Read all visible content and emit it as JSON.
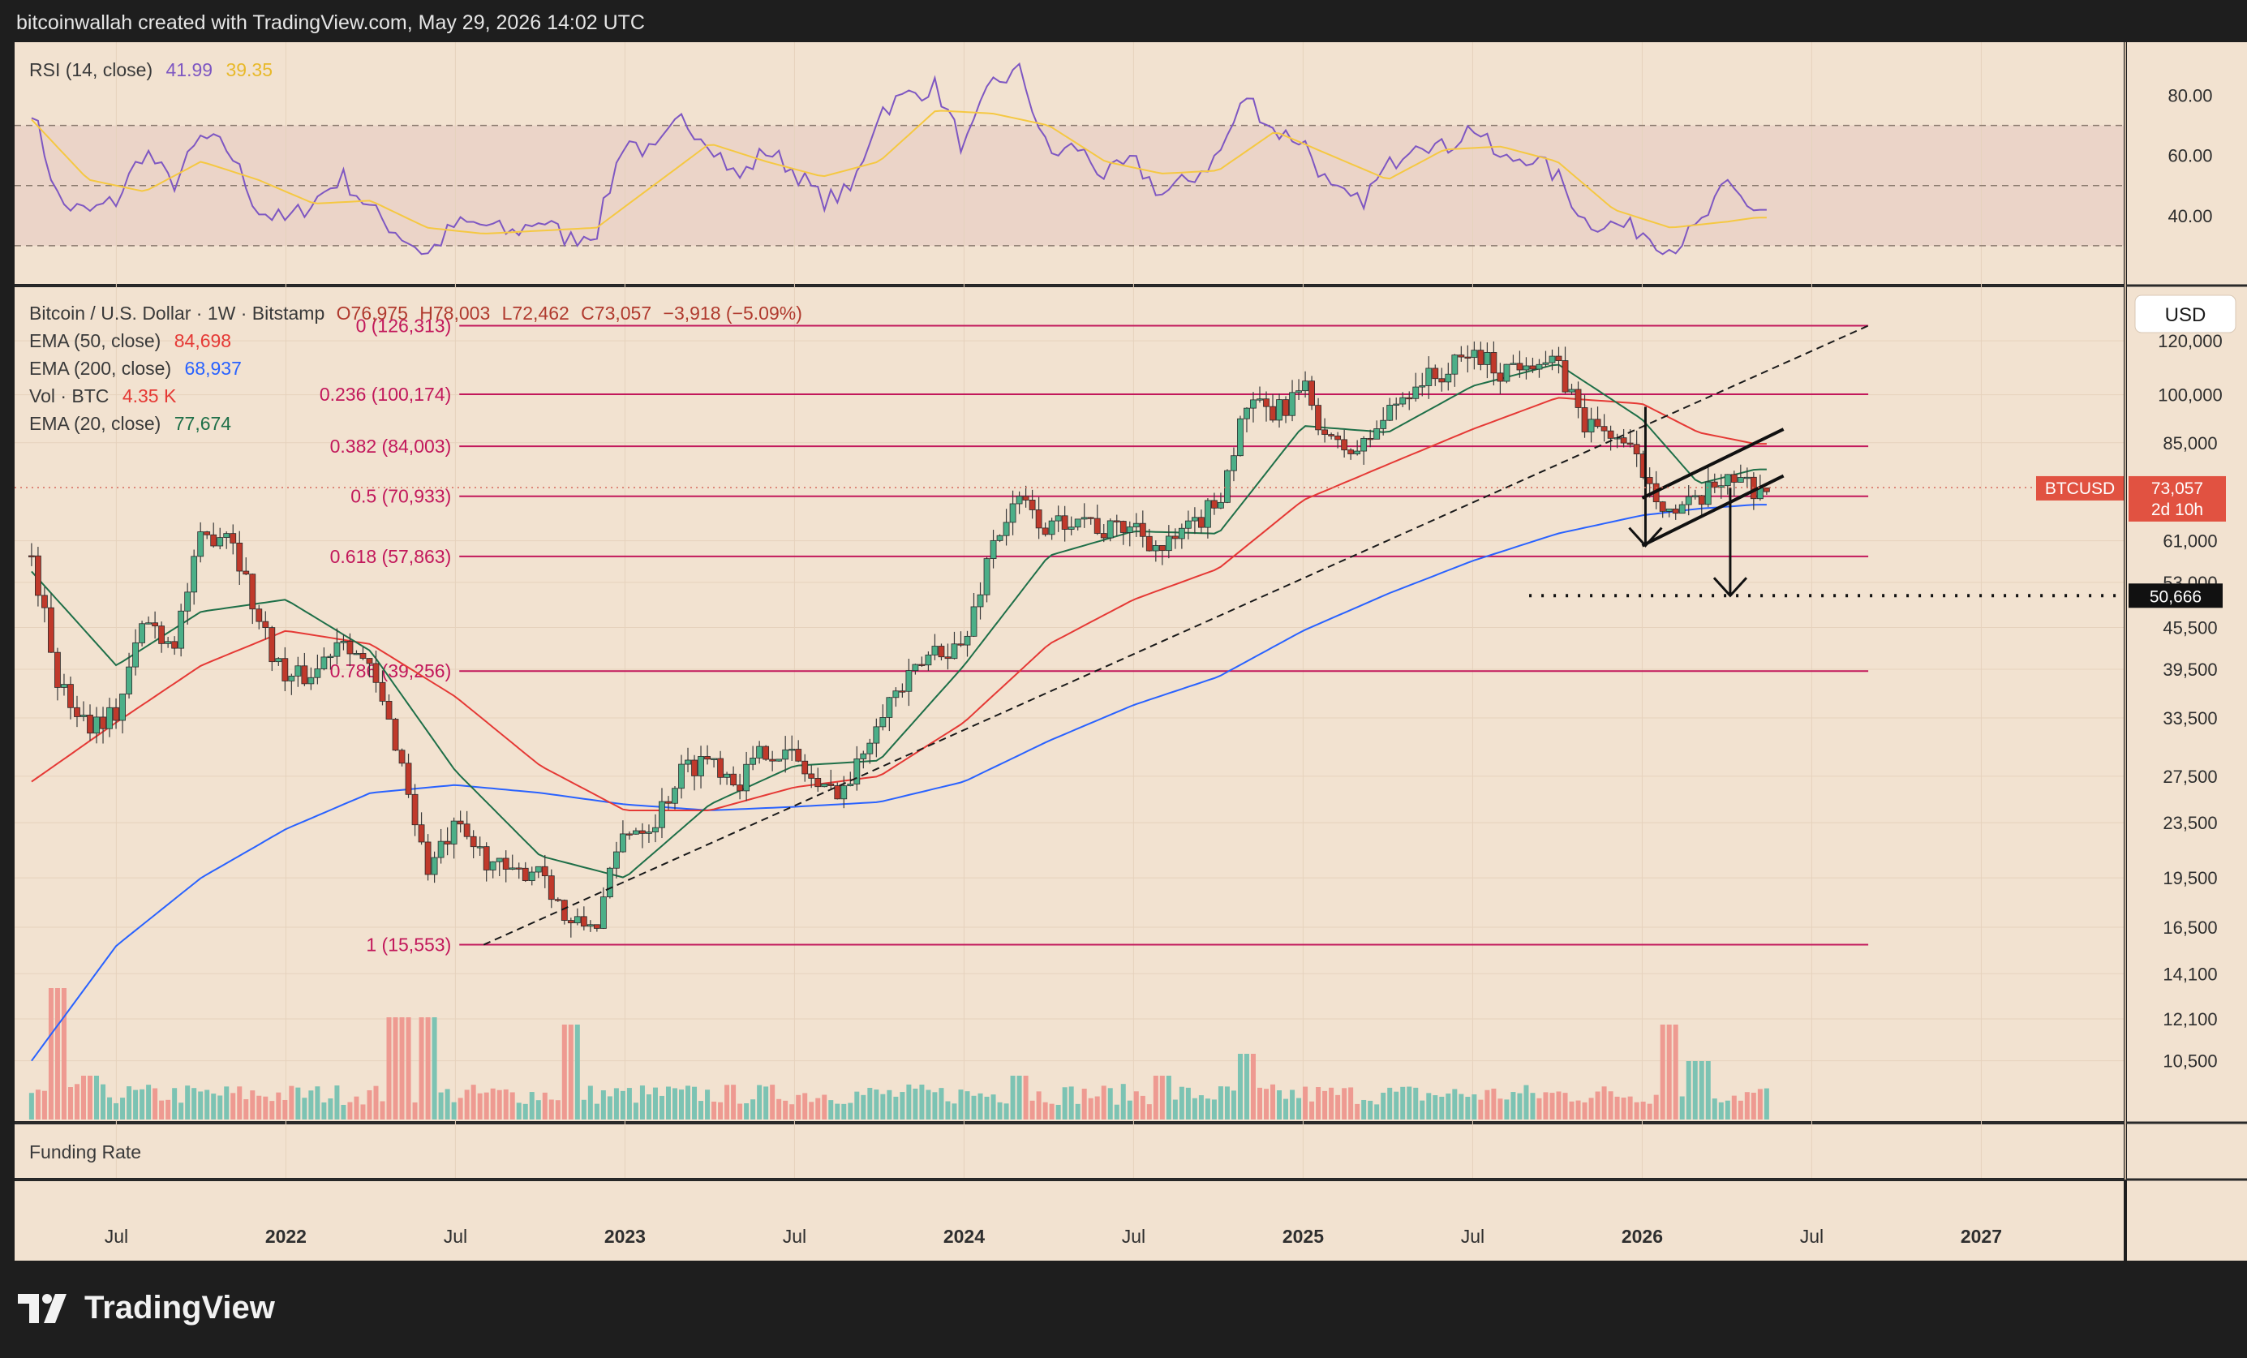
{
  "header": {
    "attribution": "bitcoinwallah created with TradingView.com, May 29, 2026 14:02 UTC"
  },
  "footer": {
    "brand": "TradingView"
  },
  "colors": {
    "background": "#f2e2d0",
    "grid": "#e6d2bd",
    "bullish": "#26a69a",
    "bearish": "#ef5350",
    "candle_up": "#4caf88",
    "candle_down": "#c0392b",
    "ema20": "#1e6f48",
    "ema50": "#e53935",
    "ema200": "#2962ff",
    "rsi": "#7e57c2",
    "rsi_ma": "#f5c842",
    "fib": "#c2185b",
    "price_label": "#e15241"
  },
  "rsi_panel": {
    "title": "RSI (14, close)",
    "rsi_value": "41.99",
    "ma_value": "39.35",
    "levels": [
      80,
      60,
      40
    ],
    "level_labels": [
      "80.00",
      "60.00",
      "40.00"
    ],
    "bands": [
      70,
      50,
      30
    ]
  },
  "legend": {
    "symbol_line": {
      "name": "Bitcoin / U.S. Dollar · 1W · Bitstamp",
      "open": "O76,975",
      "high": "H78,003",
      "low": "L72,462",
      "close": "C73,057",
      "change": "−3,918 (−5.09%)"
    },
    "ema50": {
      "label": "EMA (50, close)",
      "value": "84,698"
    },
    "ema200": {
      "label": "EMA (200, close)",
      "value": "68,937"
    },
    "vol": {
      "label": "Vol · BTC",
      "value": "4.35 K"
    },
    "ema20": {
      "label": "EMA (20, close)",
      "value": "77,674"
    }
  },
  "price_scale": {
    "currency": "USD",
    "ticks": [
      "120,000",
      "100,000",
      "85,000",
      "61,000",
      "53,000",
      "45,500",
      "39,500",
      "33,500",
      "27,500",
      "23,500",
      "19,500",
      "16,500",
      "14,100",
      "12,100",
      "10,500"
    ]
  },
  "last_price_badge": {
    "symbol": "BTCUSD",
    "price": "73,057",
    "countdown": "2d 10h"
  },
  "target_badge": "50,666",
  "funding_panel": {
    "title": "Funding Rate"
  },
  "time_axis": [
    "Jul",
    "2022",
    "Jul",
    "2023",
    "Jul",
    "2024",
    "Jul",
    "2025",
    "Jul",
    "2026",
    "Jul",
    "2027"
  ],
  "chart_data": {
    "type": "candlestick",
    "symbol": "Bitcoin / U.S. Dollar",
    "interval": "1W",
    "scale": "log",
    "ylim": [
      9500,
      140000
    ],
    "x_range": [
      "2021-04",
      "2027-05"
    ],
    "fibonacci": [
      {
        "level": "0",
        "price": 126313,
        "label": "0 (126,313)"
      },
      {
        "level": "0.236",
        "price": 100174,
        "label": "0.236 (100,174)"
      },
      {
        "level": "0.382",
        "price": 84003,
        "label": "0.382 (84,003)"
      },
      {
        "level": "0.5",
        "price": 70933,
        "label": "0.5 (70,933)"
      },
      {
        "level": "0.618",
        "price": 57863,
        "label": "0.618 (57,863)"
      },
      {
        "level": "0.786",
        "price": 39256,
        "label": "0.786 (39,256)"
      },
      {
        "level": "1",
        "price": 15553,
        "label": "1 (15,553)"
      }
    ],
    "price_path": [
      [
        "2021-04",
        58000
      ],
      [
        "2021-05",
        37000
      ],
      [
        "2021-06",
        33000
      ],
      [
        "2021-07",
        34000
      ],
      [
        "2021-08",
        47000
      ],
      [
        "2021-09",
        43000
      ],
      [
        "2021-10",
        61000
      ],
      [
        "2021-11",
        64000
      ],
      [
        "2021-12",
        47000
      ],
      [
        "2022-01",
        38000
      ],
      [
        "2022-02",
        39000
      ],
      [
        "2022-03",
        45000
      ],
      [
        "2022-04",
        39000
      ],
      [
        "2022-05",
        30000
      ],
      [
        "2022-06",
        20000
      ],
      [
        "2022-07",
        23000
      ],
      [
        "2022-08",
        21000
      ],
      [
        "2022-09",
        19500
      ],
      [
        "2022-10",
        20500
      ],
      [
        "2022-11",
        16500
      ],
      [
        "2022-12",
        16800
      ],
      [
        "2023-01",
        23000
      ],
      [
        "2023-02",
        23500
      ],
      [
        "2023-03",
        28000
      ],
      [
        "2023-04",
        29500
      ],
      [
        "2023-05",
        27000
      ],
      [
        "2023-06",
        30300
      ],
      [
        "2023-07",
        29300
      ],
      [
        "2023-08",
        26000
      ],
      [
        "2023-09",
        27000
      ],
      [
        "2023-10",
        34500
      ],
      [
        "2023-11",
        37700
      ],
      [
        "2023-12",
        42500
      ],
      [
        "2024-01",
        42500
      ],
      [
        "2024-02",
        61000
      ],
      [
        "2024-03",
        70000
      ],
      [
        "2024-04",
        63000
      ],
      [
        "2024-05",
        67500
      ],
      [
        "2024-06",
        62700
      ],
      [
        "2024-07",
        64600
      ],
      [
        "2024-08",
        59000
      ],
      [
        "2024-09",
        63300
      ],
      [
        "2024-10",
        70200
      ],
      [
        "2024-11",
        96400
      ],
      [
        "2024-12",
        93400
      ],
      [
        "2025-01",
        102400
      ],
      [
        "2025-02",
        84300
      ],
      [
        "2025-03",
        82500
      ],
      [
        "2025-04",
        94200
      ],
      [
        "2025-05",
        104600
      ],
      [
        "2025-06",
        107100
      ],
      [
        "2025-07",
        115700
      ],
      [
        "2025-08",
        108200
      ],
      [
        "2025-09",
        114000
      ],
      [
        "2025-10",
        109500
      ],
      [
        "2025-11",
        90500
      ],
      [
        "2025-12",
        87500
      ],
      [
        "2026-01",
        78000
      ],
      [
        "2026-02",
        67000
      ],
      [
        "2026-03",
        69000
      ],
      [
        "2026-04",
        77000
      ],
      [
        "2026-05",
        73057
      ]
    ],
    "ema20_path": [
      [
        "2021-04",
        55000
      ],
      [
        "2021-07",
        40000
      ],
      [
        "2021-10",
        48000
      ],
      [
        "2022-01",
        50000
      ],
      [
        "2022-04",
        42000
      ],
      [
        "2022-07",
        28000
      ],
      [
        "2022-10",
        21000
      ],
      [
        "2023-01",
        19500
      ],
      [
        "2023-04",
        25000
      ],
      [
        "2023-07",
        28500
      ],
      [
        "2023-10",
        29000
      ],
      [
        "2024-01",
        40000
      ],
      [
        "2024-04",
        58000
      ],
      [
        "2024-07",
        63000
      ],
      [
        "2024-10",
        62500
      ],
      [
        "2025-01",
        90000
      ],
      [
        "2025-04",
        88000
      ],
      [
        "2025-07",
        103000
      ],
      [
        "2025-10",
        111000
      ],
      [
        "2026-01",
        92000
      ],
      [
        "2026-03",
        74000
      ],
      [
        "2026-05",
        77674
      ]
    ],
    "ema50_path": [
      [
        "2021-04",
        27000
      ],
      [
        "2021-07",
        33000
      ],
      [
        "2021-10",
        40000
      ],
      [
        "2022-01",
        45000
      ],
      [
        "2022-04",
        43000
      ],
      [
        "2022-07",
        36000
      ],
      [
        "2022-10",
        28500
      ],
      [
        "2023-01",
        24500
      ],
      [
        "2023-04",
        24500
      ],
      [
        "2023-07",
        26500
      ],
      [
        "2023-10",
        27500
      ],
      [
        "2024-01",
        33000
      ],
      [
        "2024-04",
        43000
      ],
      [
        "2024-07",
        50000
      ],
      [
        "2024-10",
        55500
      ],
      [
        "2025-01",
        70000
      ],
      [
        "2025-04",
        79000
      ],
      [
        "2025-07",
        89000
      ],
      [
        "2025-10",
        99000
      ],
      [
        "2026-01",
        97000
      ],
      [
        "2026-03",
        88000
      ],
      [
        "2026-05",
        84698
      ]
    ],
    "ema200_path": [
      [
        "2021-04",
        10500
      ],
      [
        "2021-07",
        15500
      ],
      [
        "2021-10",
        19500
      ],
      [
        "2022-01",
        23000
      ],
      [
        "2022-04",
        26000
      ],
      [
        "2022-07",
        26700
      ],
      [
        "2022-10",
        26000
      ],
      [
        "2023-01",
        25000
      ],
      [
        "2023-04",
        24500
      ],
      [
        "2023-07",
        24800
      ],
      [
        "2023-10",
        25200
      ],
      [
        "2024-01",
        27000
      ],
      [
        "2024-04",
        31000
      ],
      [
        "2024-07",
        35000
      ],
      [
        "2024-10",
        38500
      ],
      [
        "2025-01",
        45000
      ],
      [
        "2025-04",
        51000
      ],
      [
        "2025-07",
        57000
      ],
      [
        "2025-10",
        62500
      ],
      [
        "2026-01",
        66500
      ],
      [
        "2026-03",
        68000
      ],
      [
        "2026-05",
        68937
      ]
    ],
    "trendline": [
      [
        "2022-08",
        15553
      ],
      [
        "2026-09",
        126313
      ]
    ],
    "channel_upper": [
      [
        "2026-01",
        70500
      ],
      [
        "2026-06",
        89000
      ]
    ],
    "channel_lower": [
      [
        "2026-01",
        60000
      ],
      [
        "2026-06",
        76000
      ]
    ],
    "measured_moves": [
      [
        [
          "2026-01",
          96000
        ],
        [
          "2026-01",
          60000
        ]
      ],
      [
        [
          "2026-04",
          73000
        ],
        [
          "2026-04",
          50666
        ]
      ]
    ],
    "target_line": {
      "price": 50666,
      "from": "2025-09",
      "to": "2027-04"
    },
    "rsi_path": [
      [
        "2021-04",
        76
      ],
      [
        "2021-05",
        44
      ],
      [
        "2021-06",
        41
      ],
      [
        "2021-07",
        45
      ],
      [
        "2021-08",
        62
      ],
      [
        "2021-09",
        50
      ],
      [
        "2021-10",
        66
      ],
      [
        "2021-11",
        62
      ],
      [
        "2021-12",
        42
      ],
      [
        "2022-01",
        38
      ],
      [
        "2022-02",
        45
      ],
      [
        "2022-03",
        53
      ],
      [
        "2022-04",
        42
      ],
      [
        "2022-05",
        34
      ],
      [
        "2022-06",
        27
      ],
      [
        "2022-07",
        37
      ],
      [
        "2022-08",
        37
      ],
      [
        "2022-09",
        34
      ],
      [
        "2022-10",
        39
      ],
      [
        "2022-11",
        32
      ],
      [
        "2022-12",
        35
      ],
      [
        "2023-01",
        66
      ],
      [
        "2023-02",
        60
      ],
      [
        "2023-03",
        72
      ],
      [
        "2023-04",
        65
      ],
      [
        "2023-05",
        52
      ],
      [
        "2023-06",
        62
      ],
      [
        "2023-07",
        55
      ],
      [
        "2023-08",
        45
      ],
      [
        "2023-09",
        48
      ],
      [
        "2023-10",
        75
      ],
      [
        "2023-11",
        80
      ],
      [
        "2023-12",
        83
      ],
      [
        "2024-01",
        62
      ],
      [
        "2024-02",
        84
      ],
      [
        "2024-03",
        88
      ],
      [
        "2024-04",
        60
      ],
      [
        "2024-05",
        63
      ],
      [
        "2024-06",
        53
      ],
      [
        "2024-07",
        58
      ],
      [
        "2024-08",
        47
      ],
      [
        "2024-09",
        52
      ],
      [
        "2024-10",
        60
      ],
      [
        "2024-11",
        80
      ],
      [
        "2024-12",
        68
      ],
      [
        "2025-01",
        65
      ],
      [
        "2025-02",
        48
      ],
      [
        "2025-03",
        44
      ],
      [
        "2025-04",
        56
      ],
      [
        "2025-05",
        66
      ],
      [
        "2025-06",
        62
      ],
      [
        "2025-07",
        70
      ],
      [
        "2025-08",
        58
      ],
      [
        "2025-09",
        60
      ],
      [
        "2025-10",
        53
      ],
      [
        "2025-11",
        38
      ],
      [
        "2025-12",
        37
      ],
      [
        "2026-01",
        35
      ],
      [
        "2026-02",
        29
      ],
      [
        "2026-03",
        36
      ],
      [
        "2026-04",
        50
      ],
      [
        "2026-05",
        41.99
      ]
    ],
    "rsi_ma_path": [
      [
        "2021-04",
        72
      ],
      [
        "2021-06",
        52
      ],
      [
        "2021-08",
        48
      ],
      [
        "2021-10",
        58
      ],
      [
        "2021-12",
        52
      ],
      [
        "2022-02",
        44
      ],
      [
        "2022-04",
        45
      ],
      [
        "2022-06",
        36
      ],
      [
        "2022-08",
        34
      ],
      [
        "2022-10",
        35
      ],
      [
        "2022-12",
        36
      ],
      [
        "2023-02",
        50
      ],
      [
        "2023-04",
        64
      ],
      [
        "2023-06",
        58
      ],
      [
        "2023-08",
        53
      ],
      [
        "2023-10",
        58
      ],
      [
        "2023-12",
        75
      ],
      [
        "2024-02",
        74
      ],
      [
        "2024-04",
        70
      ],
      [
        "2024-06",
        58
      ],
      [
        "2024-08",
        54
      ],
      [
        "2024-10",
        55
      ],
      [
        "2024-12",
        68
      ],
      [
        "2025-02",
        60
      ],
      [
        "2025-04",
        52
      ],
      [
        "2025-06",
        62
      ],
      [
        "2025-08",
        63
      ],
      [
        "2025-10",
        58
      ],
      [
        "2025-12",
        42
      ],
      [
        "2026-02",
        36
      ],
      [
        "2026-04",
        38
      ],
      [
        "2026-05",
        39.35
      ]
    ],
    "volume_peaks": [
      [
        "2021-05",
        18
      ],
      [
        "2021-06",
        6
      ],
      [
        "2022-05",
        14
      ],
      [
        "2022-06",
        14
      ],
      [
        "2022-11",
        13
      ],
      [
        "2024-03",
        6
      ],
      [
        "2024-08",
        6
      ],
      [
        "2024-11",
        9
      ],
      [
        "2026-02",
        13
      ],
      [
        "2026-03",
        8
      ]
    ]
  }
}
